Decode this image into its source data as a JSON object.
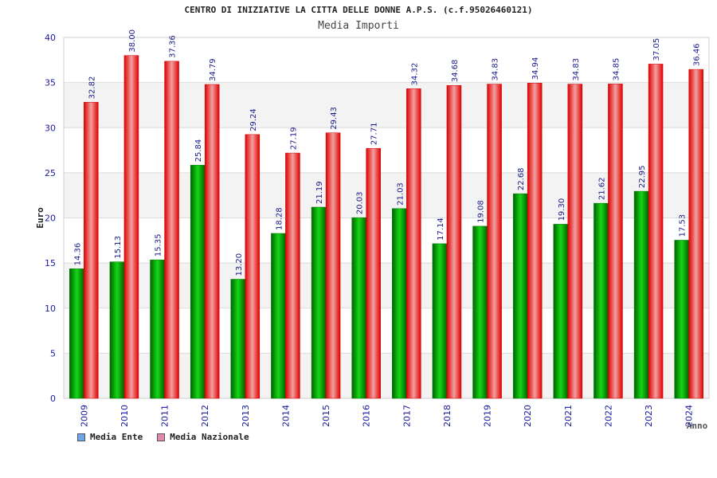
{
  "header": {
    "title": "CENTRO DI INIZIATIVE LA CITTA DELLE DONNE A.P.S. (c.f.95026460121)",
    "subtitle": "Media Importi"
  },
  "legend": {
    "items": [
      {
        "label": "Media Ente",
        "color": "#6aa6e8"
      },
      {
        "label": "Media Nazionale",
        "color": "#e08ab0"
      }
    ]
  },
  "chart_data": {
    "type": "bar",
    "title": "Media Importi",
    "xlabel": "Anno",
    "ylabel": "Euro",
    "ylim": [
      0,
      40
    ],
    "yticks": [
      0,
      5,
      10,
      15,
      20,
      25,
      30,
      35,
      40
    ],
    "categories": [
      "2009",
      "2010",
      "2011",
      "2012",
      "2013",
      "2014",
      "2015",
      "2016",
      "2017",
      "2018",
      "2019",
      "2020",
      "2021",
      "2022",
      "2023",
      "2024"
    ],
    "series": [
      {
        "name": "Media Ente",
        "color": "#00a000",
        "values": [
          14.36,
          15.13,
          15.35,
          25.84,
          13.2,
          18.28,
          21.19,
          20.03,
          21.03,
          17.14,
          19.08,
          22.68,
          19.3,
          21.62,
          22.95,
          17.53
        ],
        "labels": [
          "14.36",
          "15.13",
          "15.35",
          "25.84",
          "13.20",
          "18.28",
          "21.19",
          "20.03",
          "21.03",
          "17.14",
          "19.08",
          "22.68",
          "19.30",
          "21.62",
          "22.95",
          "17.53"
        ]
      },
      {
        "name": "Media Nazionale",
        "color": "#ee1010",
        "values": [
          32.82,
          38.0,
          37.36,
          34.79,
          29.24,
          27.19,
          29.43,
          27.71,
          34.32,
          34.68,
          34.83,
          34.94,
          34.83,
          34.85,
          37.05,
          36.46
        ],
        "labels": [
          "32.82",
          "38.00",
          "37.36",
          "34.79",
          "29.24",
          "27.19",
          "29.43",
          "27.71",
          "34.32",
          "34.68",
          "34.83",
          "34.94",
          "34.83",
          "34.85",
          "37.05",
          "36.46"
        ]
      }
    ],
    "grid": true,
    "legend_position": "bottom-left"
  }
}
